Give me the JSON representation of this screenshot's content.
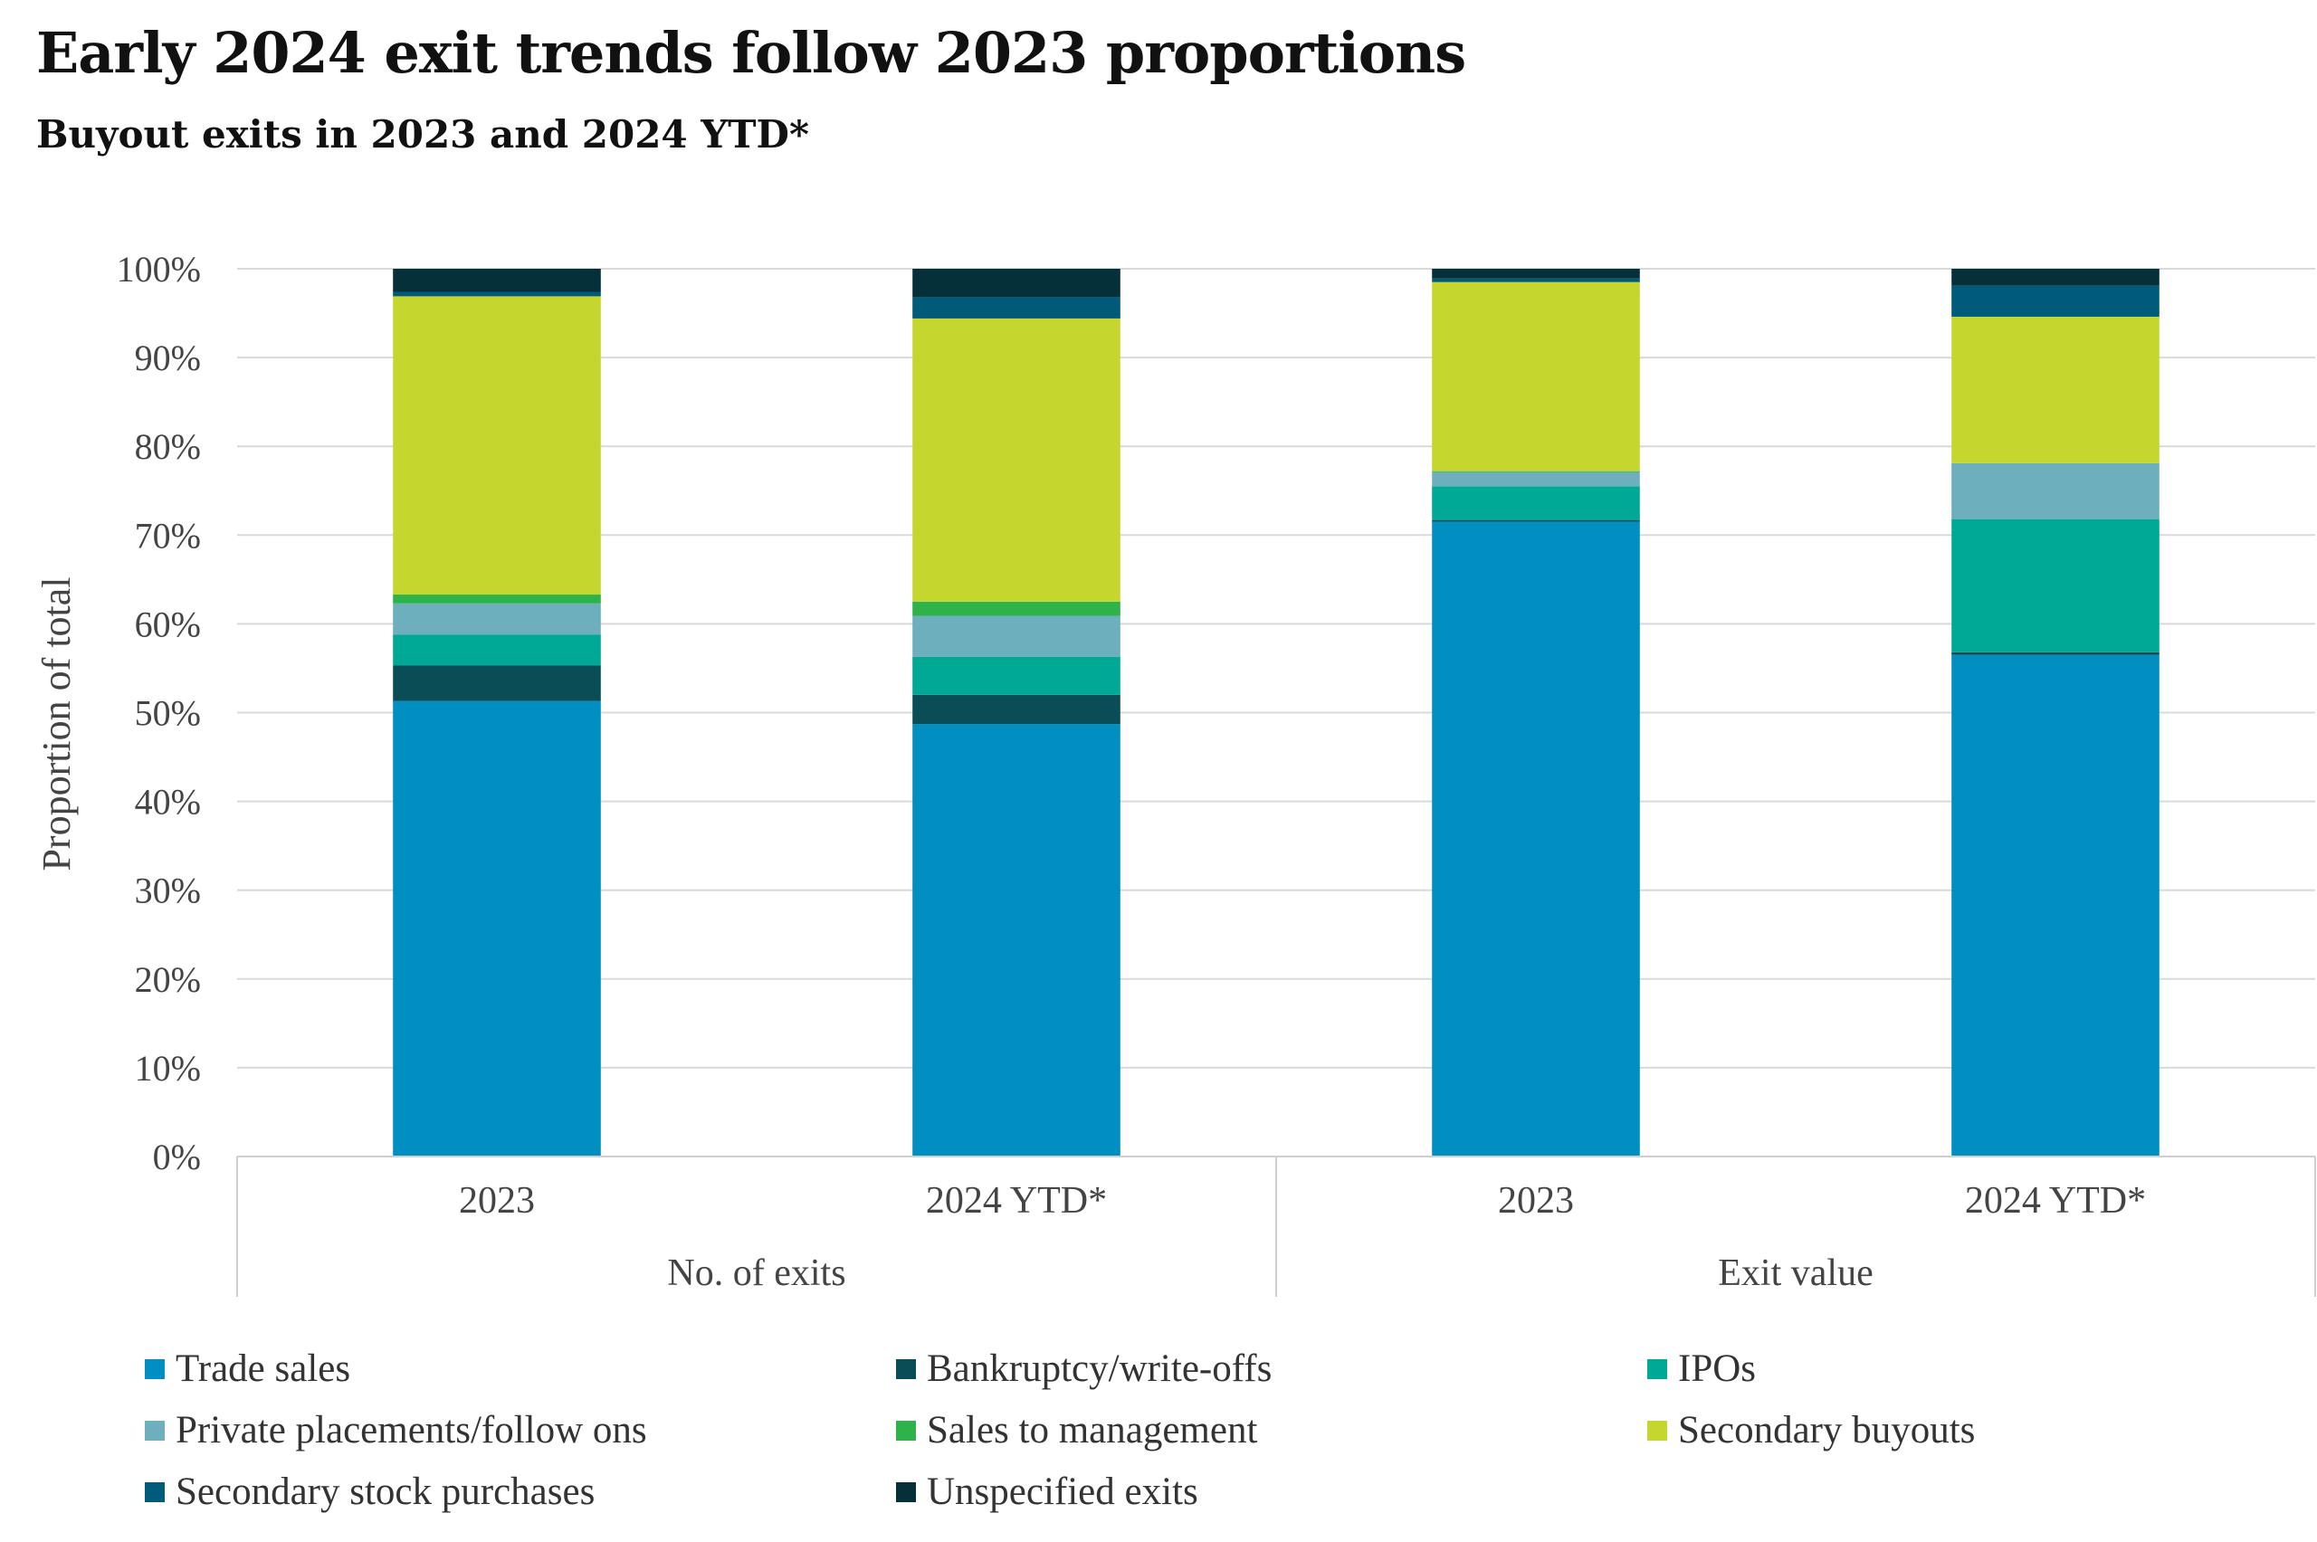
{
  "title": "Early 2024 exit trends follow 2023 proportions",
  "subtitle": "Buyout exits in 2023 and 2024 YTD*",
  "chart_data": {
    "type": "bar",
    "stacked": true,
    "ylabel": "Proportion of total",
    "ylim": [
      0,
      100
    ],
    "yticks": [
      "0%",
      "10%",
      "20%",
      "30%",
      "40%",
      "50%",
      "60%",
      "70%",
      "80%",
      "90%",
      "100%"
    ],
    "groups": [
      {
        "label": "No. of exits",
        "categories": [
          "2023",
          "2024 YTD*"
        ]
      },
      {
        "label": "Exit value",
        "categories": [
          "2023",
          "2024 YTD*"
        ]
      }
    ],
    "categories": [
      "2023",
      "2024 YTD*",
      "2023",
      "2024 YTD*"
    ],
    "series": [
      {
        "name": "Trade sales",
        "color": "#008fc0",
        "values": [
          51.3,
          48.7,
          71.5,
          56.5
        ]
      },
      {
        "name": "Bankruptcy/write-offs",
        "color": "#0b4d57",
        "values": [
          4.0,
          3.3,
          0.2,
          0.3
        ]
      },
      {
        "name": "IPOs",
        "color": "#00a896",
        "values": [
          3.5,
          4.3,
          3.8,
          15.0
        ]
      },
      {
        "name": "Private placements/follow ons",
        "color": "#6dafbd",
        "values": [
          3.5,
          4.6,
          1.6,
          6.3
        ]
      },
      {
        "name": "Sales to management",
        "color": "#2eb34a",
        "values": [
          1.0,
          1.6,
          0.1,
          0.0
        ]
      },
      {
        "name": "Secondary buyouts",
        "color": "#c5d72e",
        "values": [
          33.6,
          31.9,
          21.3,
          16.5
        ]
      },
      {
        "name": "Secondary stock purchases",
        "color": "#005a7a",
        "values": [
          0.5,
          2.4,
          0.4,
          3.5
        ]
      },
      {
        "name": "Unspecified exits",
        "color": "#05303a",
        "values": [
          2.6,
          3.2,
          1.1,
          1.9
        ]
      }
    ],
    "grid": true,
    "legend_position": "bottom"
  }
}
